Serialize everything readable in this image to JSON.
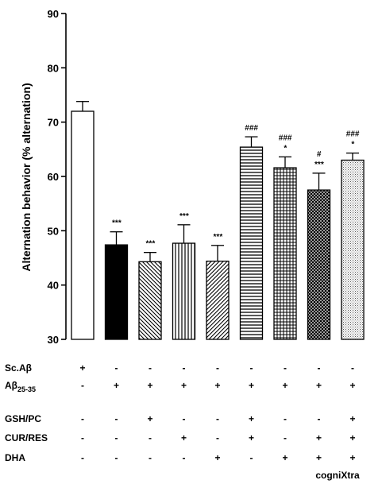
{
  "chart_data": {
    "type": "bar",
    "ylabel": "Alternation behavior (% alternation)",
    "ylim": [
      30,
      90
    ],
    "yticks": [
      30,
      40,
      50,
      60,
      70,
      80,
      90
    ],
    "grid": false,
    "bars": [
      {
        "value": 72.0,
        "error": 1.8,
        "pattern": "white",
        "annotations": []
      },
      {
        "value": 47.4,
        "error": 2.4,
        "pattern": "black",
        "annotations": [
          "***"
        ]
      },
      {
        "value": 44.3,
        "error": 1.7,
        "pattern": "diag-back",
        "annotations": [
          "***"
        ]
      },
      {
        "value": 47.7,
        "error": 3.4,
        "pattern": "vertical",
        "annotations": [
          "***"
        ]
      },
      {
        "value": 44.4,
        "error": 2.9,
        "pattern": "diag-fwd",
        "annotations": [
          "***"
        ]
      },
      {
        "value": 65.4,
        "error": 1.9,
        "pattern": "horizontal",
        "annotations": [
          "###"
        ]
      },
      {
        "value": 61.6,
        "error": 2.0,
        "pattern": "grid",
        "annotations": [
          "*",
          "###"
        ]
      },
      {
        "value": 57.5,
        "error": 3.1,
        "pattern": "crosshatch",
        "annotations": [
          "***",
          "#"
        ]
      },
      {
        "value": 63.0,
        "error": 1.3,
        "pattern": "dots",
        "annotations": [
          "*",
          "###"
        ]
      }
    ],
    "treatment_rows": [
      {
        "label": "Sc.Aβ",
        "sub": "",
        "values": [
          "+",
          "-",
          "-",
          "-",
          "-",
          "-",
          "-",
          "-",
          "-"
        ]
      },
      {
        "label": "Aβ",
        "sub": "25-35",
        "values": [
          "-",
          "+",
          "+",
          "+",
          "+",
          "+",
          "+",
          "+",
          "+"
        ]
      },
      {
        "label": "GSH/PC",
        "sub": "",
        "values": [
          "-",
          "-",
          "+",
          "-",
          "-",
          "+",
          "-",
          "-",
          "+"
        ]
      },
      {
        "label": "CUR/RES",
        "sub": "",
        "values": [
          "-",
          "-",
          "-",
          "+",
          "-",
          "+",
          "-",
          "+",
          "+"
        ]
      },
      {
        "label": "DHA",
        "sub": "",
        "values": [
          "-",
          "-",
          "-",
          "-",
          "+",
          "-",
          "+",
          "+",
          "+"
        ]
      }
    ],
    "footer_label": "cogniXtra"
  }
}
